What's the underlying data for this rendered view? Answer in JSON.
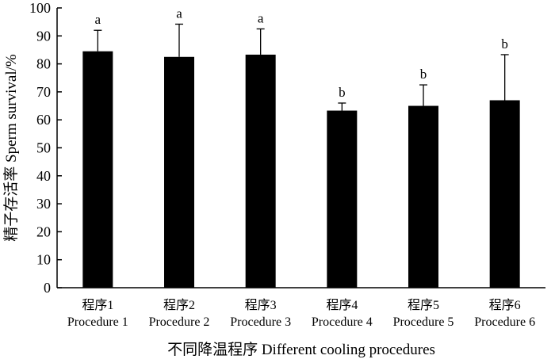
{
  "chart_data": {
    "type": "bar",
    "title": "",
    "xlabel": "不同降温程序 Different cooling procedures",
    "ylabel": "精子存活率 Sperm survival/%",
    "ylim": [
      0,
      100
    ],
    "yticks": [
      "0",
      "10",
      "20",
      "30",
      "40",
      "50",
      "60",
      "70",
      "80",
      "90",
      "100"
    ],
    "categories": [
      {
        "cn": "程序1",
        "en": "Procedure 1"
      },
      {
        "cn": "程序2",
        "en": "Procedure 2"
      },
      {
        "cn": "程序3",
        "en": "Procedure 3"
      },
      {
        "cn": "程序4",
        "en": "Procedure 4"
      },
      {
        "cn": "程序5",
        "en": "Procedure 5"
      },
      {
        "cn": "程序6",
        "en": "Procedure 6"
      }
    ],
    "values": [
      84.5,
      82.5,
      83.3,
      63.3,
      65.0,
      67.0
    ],
    "errors": [
      7.5,
      11.7,
      9.2,
      2.7,
      7.5,
      16.3
    ],
    "significance": [
      "a",
      "a",
      "a",
      "b",
      "b",
      "b"
    ],
    "bar_color": "#000000",
    "grid": false,
    "legend": "none"
  }
}
